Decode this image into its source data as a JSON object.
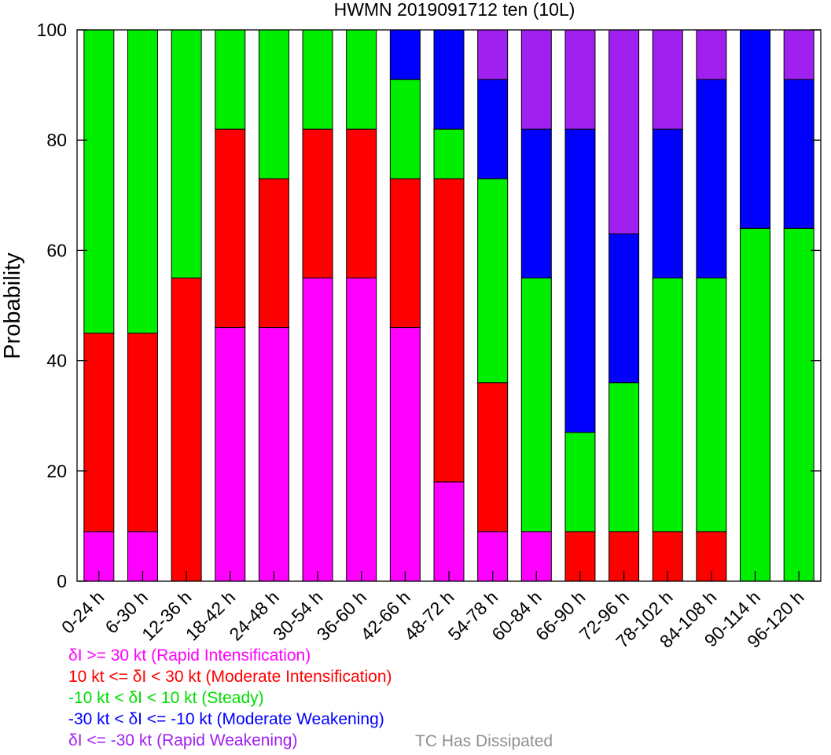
{
  "chart_data": {
    "type": "bar",
    "stacked": true,
    "title": "HWMN 2019091712 ten (10L)",
    "xlabel": "",
    "ylabel": "Probability",
    "ylim": [
      0,
      100
    ],
    "yticks": [
      "0",
      "20",
      "40",
      "60",
      "80",
      "100"
    ],
    "grid": false,
    "legend_position": "bottom-left",
    "categories": [
      "0-24 h",
      "6-30 h",
      "12-36 h",
      "18-42 h",
      "24-48 h",
      "30-54 h",
      "36-60 h",
      "42-66 h",
      "48-72 h",
      "54-78 h",
      "60-84 h",
      "66-90 h",
      "72-96 h",
      "78-102 h",
      "84-108 h",
      "90-114 h",
      "96-120 h"
    ],
    "series": [
      {
        "name": "δI >= 30 kt (Rapid Intensification)",
        "color": "#ff00ff",
        "values": [
          9,
          9,
          0,
          46,
          46,
          55,
          55,
          46,
          18,
          9,
          9,
          0,
          0,
          0,
          0,
          0,
          0
        ]
      },
      {
        "name": "10 kt <= δI < 30 kt (Moderate Intensification)",
        "color": "#ff0000",
        "values": [
          36,
          36,
          55,
          36,
          27,
          27,
          27,
          27,
          55,
          27,
          0,
          9,
          9,
          9,
          9,
          0,
          0
        ]
      },
      {
        "name": "-10 kt < δI < 10 kt (Steady)",
        "color": "#00ee00",
        "values": [
          55,
          55,
          45,
          18,
          27,
          18,
          18,
          18,
          9,
          37,
          46,
          18,
          27,
          46,
          46,
          64,
          64
        ]
      },
      {
        "name": "-30 kt < δI <= -10 kt (Moderate Weakening)",
        "color": "#0000ff",
        "values": [
          0,
          0,
          0,
          0,
          0,
          0,
          0,
          9,
          18,
          18,
          27,
          55,
          27,
          27,
          36,
          36,
          27
        ]
      },
      {
        "name": "δI <= -30 kt (Rapid Weakening)",
        "color": "#a020f0",
        "values": [
          0,
          0,
          0,
          0,
          0,
          0,
          0,
          0,
          0,
          9,
          18,
          18,
          37,
          18,
          9,
          0,
          9
        ]
      }
    ],
    "legend_note": {
      "text": "TC Has Dissipated",
      "color": "#909090"
    }
  }
}
